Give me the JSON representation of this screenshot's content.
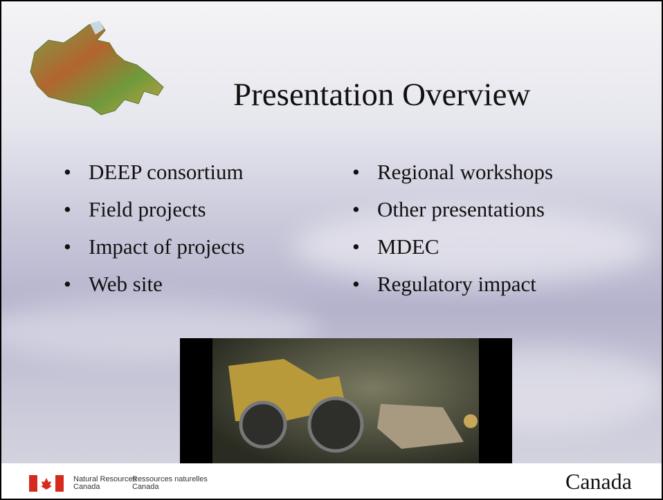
{
  "slide": {
    "title": "Presentation Overview",
    "left_items": [
      "DEEP consortium",
      "Field projects",
      "Impact of projects",
      "Web site"
    ],
    "right_items": [
      "Regional workshops",
      "Other presentations",
      "MDEC",
      "Regulatory impact"
    ],
    "footer": {
      "department_en": [
        "Natural Resources",
        "Canada"
      ],
      "department_fr": [
        "Ressources naturelles",
        "Canada"
      ],
      "wordmark": "Canada"
    }
  }
}
